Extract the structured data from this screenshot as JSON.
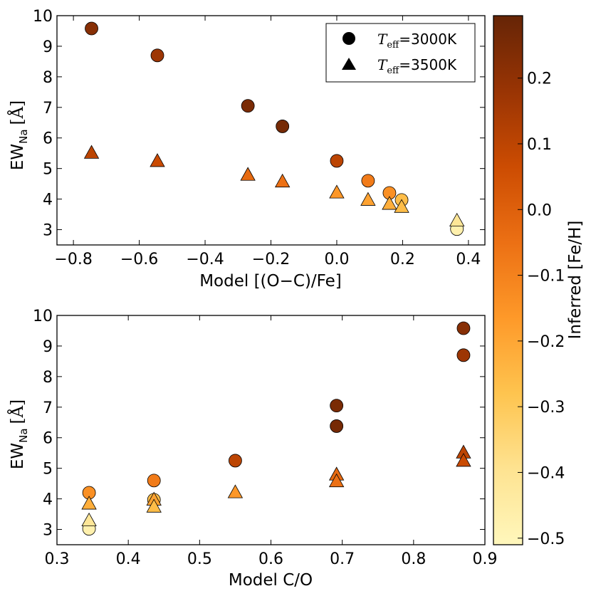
{
  "chart_data": [
    {
      "id": "top",
      "type": "scatter",
      "xlabel": "Model [(O−C)/Fe]",
      "ylabel_main": "EW",
      "ylabel_sub": "Na",
      "ylabel_unit": "[Å]",
      "xlim": [
        -0.85,
        0.45
      ],
      "ylim": [
        2.5,
        10
      ],
      "xticks": [
        -0.8,
        -0.6,
        -0.4,
        -0.2,
        0.0,
        0.2,
        0.4
      ],
      "xtick_labels": [
        "−0.8",
        "−0.6",
        "−0.4",
        "−0.2",
        "0.0",
        "0.2",
        "0.4"
      ],
      "yticks": [
        3,
        4,
        5,
        6,
        7,
        8,
        9,
        10
      ],
      "ytick_labels": [
        "3",
        "4",
        "5",
        "6",
        "7",
        "8",
        "9",
        "10"
      ],
      "series": [
        {
          "name": "T_eff=3000K",
          "marker": "circle",
          "points": [
            {
              "x": -0.745,
              "y": 9.58,
              "feh": 0.22
            },
            {
              "x": -0.545,
              "y": 8.7,
              "feh": 0.17
            },
            {
              "x": -0.27,
              "y": 7.05,
              "feh": 0.25
            },
            {
              "x": -0.165,
              "y": 6.38,
              "feh": 0.26
            },
            {
              "x": 0.0,
              "y": 5.25,
              "feh": 0.1
            },
            {
              "x": 0.095,
              "y": 4.6,
              "feh": -0.08
            },
            {
              "x": 0.16,
              "y": 4.2,
              "feh": -0.14
            },
            {
              "x": 0.197,
              "y": 3.97,
              "feh": -0.26
            },
            {
              "x": 0.365,
              "y": 3.02,
              "feh": -0.47
            }
          ]
        },
        {
          "name": "T_eff=3500K",
          "marker": "triangle",
          "points": [
            {
              "x": -0.745,
              "y": 5.52,
              "feh": 0.1
            },
            {
              "x": -0.545,
              "y": 5.25,
              "feh": 0.07
            },
            {
              "x": -0.27,
              "y": 4.8,
              "feh": -0.03
            },
            {
              "x": -0.165,
              "y": 4.58,
              "feh": -0.05
            },
            {
              "x": 0.0,
              "y": 4.22,
              "feh": -0.16
            },
            {
              "x": 0.095,
              "y": 3.98,
              "feh": -0.19
            },
            {
              "x": 0.16,
              "y": 3.85,
              "feh": -0.22
            },
            {
              "x": 0.197,
              "y": 3.75,
              "feh": -0.26
            },
            {
              "x": 0.365,
              "y": 3.3,
              "feh": -0.41
            }
          ]
        }
      ]
    },
    {
      "id": "bottom",
      "type": "scatter",
      "xlabel": "Model C/O",
      "ylabel_main": "EW",
      "ylabel_sub": "Na",
      "ylabel_unit": "[Å]",
      "xlim": [
        0.3,
        0.9
      ],
      "ylim": [
        2.5,
        10
      ],
      "xticks": [
        0.3,
        0.4,
        0.5,
        0.6,
        0.7,
        0.8,
        0.9
      ],
      "xtick_labels": [
        "0.3",
        "0.4",
        "0.5",
        "0.6",
        "0.7",
        "0.8",
        "0.9"
      ],
      "yticks": [
        3,
        4,
        5,
        6,
        7,
        8,
        9,
        10
      ],
      "ytick_labels": [
        "3",
        "4",
        "5",
        "6",
        "7",
        "8",
        "9",
        "10"
      ],
      "series": [
        {
          "name": "T_eff=3000K",
          "marker": "circle",
          "points": [
            {
              "x": 0.345,
              "y": 4.2,
              "feh": -0.14
            },
            {
              "x": 0.345,
              "y": 3.02,
              "feh": -0.47
            },
            {
              "x": 0.436,
              "y": 4.6,
              "feh": -0.08
            },
            {
              "x": 0.436,
              "y": 3.97,
              "feh": -0.26
            },
            {
              "x": 0.55,
              "y": 5.25,
              "feh": 0.1
            },
            {
              "x": 0.692,
              "y": 7.05,
              "feh": 0.25
            },
            {
              "x": 0.692,
              "y": 6.38,
              "feh": 0.26
            },
            {
              "x": 0.87,
              "y": 9.58,
              "feh": 0.22
            },
            {
              "x": 0.87,
              "y": 8.7,
              "feh": 0.17
            }
          ]
        },
        {
          "name": "T_eff=3500K",
          "marker": "triangle",
          "points": [
            {
              "x": 0.345,
              "y": 3.85,
              "feh": -0.22
            },
            {
              "x": 0.345,
              "y": 3.3,
              "feh": -0.41
            },
            {
              "x": 0.436,
              "y": 3.98,
              "feh": -0.19
            },
            {
              "x": 0.436,
              "y": 3.75,
              "feh": -0.26
            },
            {
              "x": 0.55,
              "y": 4.22,
              "feh": -0.16
            },
            {
              "x": 0.692,
              "y": 4.8,
              "feh": -0.03
            },
            {
              "x": 0.692,
              "y": 4.58,
              "feh": -0.05
            },
            {
              "x": 0.87,
              "y": 5.52,
              "feh": 0.1
            },
            {
              "x": 0.87,
              "y": 5.25,
              "feh": 0.07
            }
          ]
        }
      ]
    }
  ],
  "legend": {
    "placement": "top-right",
    "entries": [
      {
        "marker": "circle",
        "symbol": "T",
        "subscript": "eff",
        "text": "=3000K"
      },
      {
        "marker": "triangle",
        "symbol": "T",
        "subscript": "eff",
        "text": "=3500K"
      }
    ]
  },
  "colorbar": {
    "label": "Inferred [Fe/H]",
    "range": [
      -0.51,
      0.295
    ],
    "ticks": [
      -0.5,
      -0.4,
      -0.3,
      -0.2,
      -0.1,
      0.0,
      0.1,
      0.2
    ],
    "tick_labels": [
      "−0.5",
      "−0.4",
      "−0.3",
      "−0.2",
      "−0.1",
      "0.0",
      "0.1",
      "0.2"
    ],
    "colormap_stops": [
      "#fff7bc",
      "#fee391",
      "#fec44f",
      "#fe9929",
      "#ec7014",
      "#cc4c02",
      "#993404",
      "#662506"
    ]
  }
}
